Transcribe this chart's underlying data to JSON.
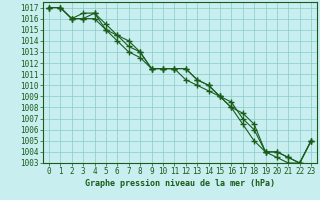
{
  "title": "Graphe pression niveau de la mer (hPa)",
  "bg_color": "#c8eef0",
  "grid_color": "#88cccc",
  "line_color": "#1a5c1a",
  "spine_color": "#1a5c1a",
  "xlim": [
    -0.5,
    23.5
  ],
  "ylim": [
    1003,
    1017.5
  ],
  "xticks": [
    0,
    1,
    2,
    3,
    4,
    5,
    6,
    7,
    8,
    9,
    10,
    11,
    12,
    13,
    14,
    15,
    16,
    17,
    18,
    19,
    20,
    21,
    22,
    23
  ],
  "yticks": [
    1003,
    1004,
    1005,
    1006,
    1007,
    1008,
    1009,
    1010,
    1011,
    1012,
    1013,
    1014,
    1015,
    1016,
    1017
  ],
  "line1_x": [
    0,
    1,
    2,
    3,
    4,
    5,
    6,
    7,
    8,
    9,
    10,
    11,
    12,
    13,
    14,
    15,
    16,
    17,
    18,
    19,
    20,
    21,
    22,
    23
  ],
  "line1_y": [
    1017,
    1017,
    1016,
    1016,
    1016.5,
    1015.5,
    1014.5,
    1013.5,
    1013,
    1011.5,
    1011.5,
    1011.5,
    1011.5,
    1010.5,
    1010,
    1009,
    1008.5,
    1007,
    1006,
    1004,
    1003.5,
    1003,
    1003,
    1005
  ],
  "line2_x": [
    0,
    1,
    2,
    3,
    4,
    5,
    6,
    7,
    8,
    9,
    10,
    11,
    12,
    13,
    14,
    15,
    16,
    17,
    18,
    19,
    20,
    21,
    22,
    23
  ],
  "line2_y": [
    1017,
    1017,
    1016,
    1016.5,
    1016.5,
    1015,
    1014.5,
    1014,
    1013,
    1011.5,
    1011.5,
    1011.5,
    1010.5,
    1010,
    1009.5,
    1009,
    1008,
    1007.5,
    1006.5,
    1004,
    1004,
    1003.5,
    1003,
    1005
  ],
  "line3_x": [
    0,
    1,
    2,
    3,
    4,
    5,
    6,
    7,
    8,
    9,
    10,
    11,
    12,
    13,
    14,
    15,
    16,
    17,
    18,
    19,
    20,
    21,
    22,
    23
  ],
  "line3_y": [
    1017,
    1017,
    1016,
    1016,
    1016,
    1015,
    1014,
    1013,
    1012.5,
    1011.5,
    1011.5,
    1011.5,
    1011.5,
    1010.5,
    1010,
    1009,
    1008,
    1006.5,
    1005,
    1004,
    1004,
    1003.5,
    1003,
    1005
  ],
  "tick_fontsize": 5.5,
  "label_fontsize": 6.0
}
